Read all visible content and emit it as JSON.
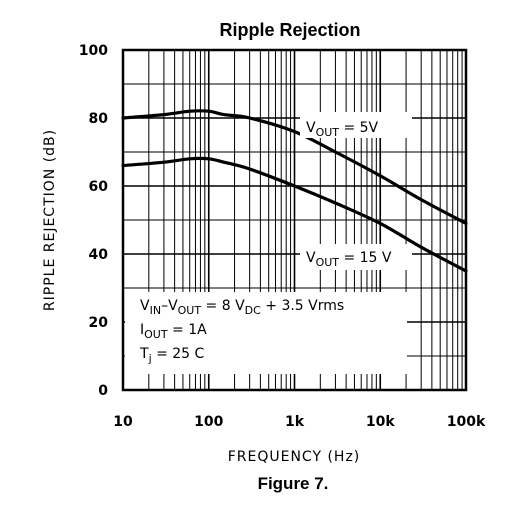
{
  "chart_data": {
    "type": "line",
    "title": "Ripple Rejection",
    "caption": "Figure 7.",
    "xlabel": "FREQUENCY (Hz)",
    "ylabel": "RIPPLE REJECTION (dB)",
    "x_scale": "log",
    "xlim": [
      10,
      100000
    ],
    "ylim": [
      0,
      100
    ],
    "x_ticks": [
      10,
      100,
      1000,
      10000,
      100000
    ],
    "x_tick_labels": [
      "10",
      "100",
      "1k",
      "10k",
      "100k"
    ],
    "y_ticks": [
      0,
      20,
      40,
      60,
      80,
      100
    ],
    "y_tick_labels": [
      "0",
      "20",
      "40",
      "60",
      "80",
      "100"
    ],
    "grid": true,
    "series": [
      {
        "label_parts": {
          "main": "V",
          "sub": "OUT",
          "eq": " = 5V"
        },
        "x": [
          10,
          30,
          60,
          100,
          150,
          300,
          1000,
          3000,
          10000,
          30000,
          100000
        ],
        "y": [
          80,
          81,
          82,
          82,
          81,
          80,
          76,
          70,
          63,
          56,
          49
        ]
      },
      {
        "label_parts": {
          "main": "V",
          "sub": "OUT",
          "eq": " = 15 V"
        },
        "x": [
          10,
          30,
          60,
          100,
          150,
          300,
          1000,
          3000,
          10000,
          30000,
          100000
        ],
        "y": [
          66,
          67,
          68,
          68,
          67,
          65,
          60,
          55,
          49,
          42,
          35
        ]
      }
    ],
    "conditions": {
      "line1": {
        "a": "V",
        "a_sub": "IN",
        "b": "–V",
        "b_sub": "OUT",
        "c": " = 8 V",
        "c_sub": "DC",
        "d": " + 3.5 Vrms"
      },
      "line2": {
        "a": "I",
        "a_sub": "OUT",
        "b": " = 1A"
      },
      "line3": {
        "a": "T",
        "a_sub": "j",
        "b": " = 25 C"
      }
    }
  }
}
